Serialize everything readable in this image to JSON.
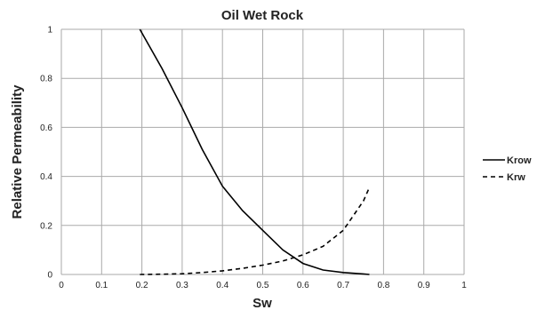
{
  "chart_data": {
    "type": "line",
    "title": "Oil Wet Rock",
    "xlabel": "Sw",
    "ylabel": "Relative Permeability",
    "xlim": [
      0,
      1
    ],
    "ylim": [
      0,
      1
    ],
    "xticks": [
      "0",
      "0.1",
      "0.2",
      "0.3",
      "0.4",
      "0.5",
      "0.6",
      "0.7",
      "0.8",
      "0.9",
      "1"
    ],
    "yticks": [
      "0",
      "0.2",
      "0.4",
      "0.6",
      "0.8",
      "1"
    ],
    "grid": true,
    "legend_position": "right",
    "series": [
      {
        "name": "Krow",
        "style": "solid",
        "color": "#000000",
        "x": [
          0.195,
          0.25,
          0.3,
          0.35,
          0.4,
          0.45,
          0.5,
          0.55,
          0.6,
          0.65,
          0.7,
          0.75,
          0.765
        ],
        "y": [
          1.0,
          0.84,
          0.68,
          0.51,
          0.36,
          0.26,
          0.18,
          0.1,
          0.045,
          0.018,
          0.008,
          0.002,
          0.0
        ]
      },
      {
        "name": "Krw",
        "style": "dashed",
        "color": "#000000",
        "x": [
          0.195,
          0.25,
          0.3,
          0.35,
          0.4,
          0.45,
          0.5,
          0.55,
          0.6,
          0.65,
          0.7,
          0.75,
          0.765
        ],
        "y": [
          0.0,
          0.001,
          0.003,
          0.008,
          0.015,
          0.025,
          0.038,
          0.055,
          0.08,
          0.115,
          0.18,
          0.3,
          0.355
        ]
      }
    ]
  }
}
